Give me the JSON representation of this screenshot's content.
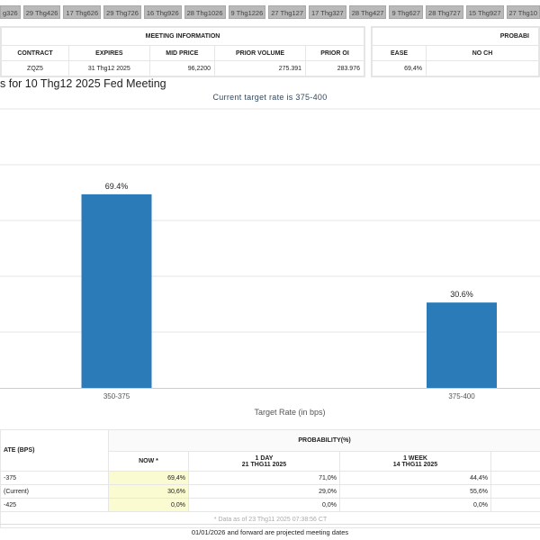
{
  "tabs": [
    "g326",
    "29 Thg426",
    "17 Thg626",
    "29 Thg726",
    "16 Thg926",
    "28 Thg1026",
    "9 Thg1226",
    "27 Thg127",
    "17 Thg327",
    "28 Thg427",
    "9 Thg627",
    "28 Thg727",
    "15 Thg927",
    "27 Thg10"
  ],
  "meeting_info": {
    "title": "MEETING INFORMATION",
    "headers": [
      "CONTRACT",
      "EXPIRES",
      "MID PRICE",
      "PRIOR VOLUME",
      "PRIOR OI"
    ],
    "values": [
      "ZQZ5",
      "31 Thg12 2025",
      "96,2200",
      "275.391",
      "283.976"
    ]
  },
  "prob_panel": {
    "title": "PROBABI",
    "headers": [
      "EASE",
      "NO CH"
    ],
    "values": [
      "69,4%",
      ""
    ]
  },
  "chart_title": "s for 10 Thg12 2025 Fed Meeting",
  "chart_data": {
    "type": "bar",
    "subtitle": "Current target rate is 375-400",
    "categories": [
      "350-375",
      "375-400"
    ],
    "values": [
      69.4,
      30.6
    ],
    "data_labels": [
      "69.4%",
      "30.6%"
    ],
    "xlabel": "Target Rate (in bps)",
    "ylim": [
      0,
      100
    ],
    "grid": true,
    "color": "#2b7bb9"
  },
  "table": {
    "rate_header": "ATE (BPS)",
    "prob_header": "PROBABILITY(%)",
    "cols": [
      {
        "l1": "NOW *",
        "l2": ""
      },
      {
        "l1": "1 DAY",
        "l2": "21 THG11 2025"
      },
      {
        "l1": "1 WEEK",
        "l2": "14 THG11 2025"
      }
    ],
    "rows": [
      {
        "rate": "-375",
        "v": [
          "69,4%",
          "71,0%",
          "44,4%"
        ]
      },
      {
        "rate": "(Current)",
        "v": [
          "30,6%",
          "29,0%",
          "55,6%"
        ]
      },
      {
        "rate": "-425",
        "v": [
          "0,0%",
          "0,0%",
          "0,0%"
        ]
      }
    ],
    "note": "* Data as of 23 Thg11 2025 07:38:56 CT"
  },
  "footer": "01/01/2026 and forward are projected meeting dates"
}
